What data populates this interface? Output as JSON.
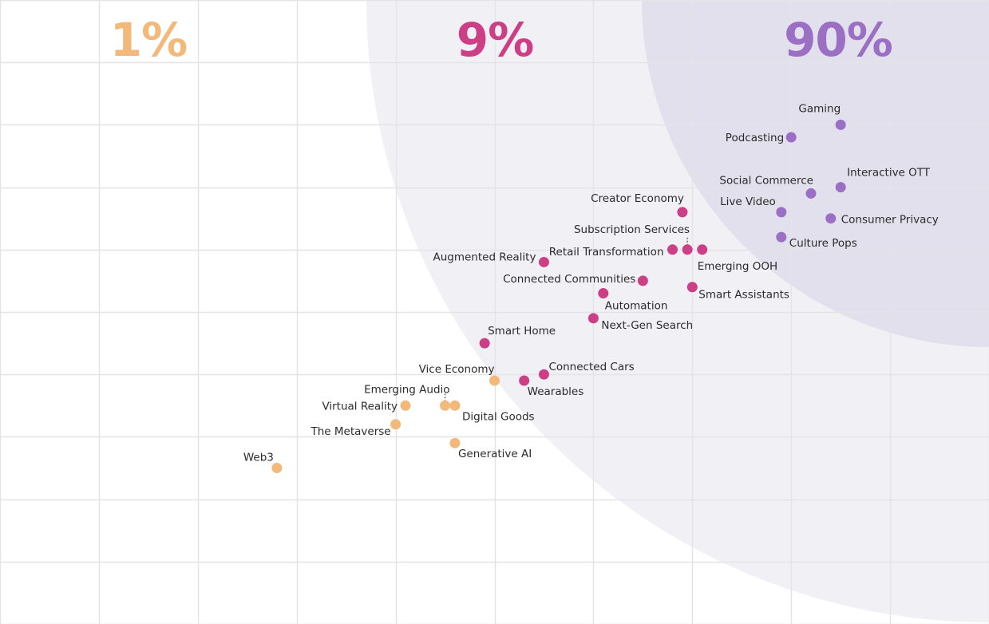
{
  "colors": {
    "tier_1": "#f2b97a",
    "tier_9": "#cc3f86",
    "tier_90": "#9b6fc4",
    "zone_outer": "#f0f0f5",
    "zone_inner": "#e2e0ec",
    "grid": "#e4e4e8"
  },
  "chart_data": {
    "type": "scatter",
    "title": "",
    "xlabel": "",
    "ylabel": "",
    "grid": true,
    "legend": "none",
    "tier_headers": [
      {
        "label": "1%",
        "tier": "1"
      },
      {
        "label": "9%",
        "tier": "9"
      },
      {
        "label": "90%",
        "tier": "90"
      }
    ],
    "series": [
      {
        "name": "1%",
        "points": [
          {
            "label": "Web3",
            "x": 2.8,
            "y": 2.5
          },
          {
            "label": "The Metaverse",
            "x": 4.0,
            "y": 3.2
          },
          {
            "label": "Virtual Reality",
            "x": 4.1,
            "y": 3.5
          },
          {
            "label": "Emerging Audio",
            "x": 4.5,
            "y": 3.5
          },
          {
            "label": "Digital Goods",
            "x": 4.6,
            "y": 3.5
          },
          {
            "label": "Generative AI",
            "x": 4.6,
            "y": 2.9
          },
          {
            "label": "Vice Economy",
            "x": 5.0,
            "y": 3.9
          }
        ]
      },
      {
        "name": "9%",
        "points": [
          {
            "label": "Smart Home",
            "x": 4.9,
            "y": 4.5
          },
          {
            "label": "Wearables",
            "x": 5.3,
            "y": 3.9
          },
          {
            "label": "Connected Cars",
            "x": 5.5,
            "y": 4.0
          },
          {
            "label": "Augmented Reality",
            "x": 5.5,
            "y": 5.8
          },
          {
            "label": "Next-Gen Search",
            "x": 6.0,
            "y": 4.9
          },
          {
            "label": "Automation",
            "x": 6.1,
            "y": 5.3
          },
          {
            "label": "Connected Communities",
            "x": 6.5,
            "y": 5.5
          },
          {
            "label": "Creator Economy",
            "x": 6.9,
            "y": 6.6
          },
          {
            "label": "Retail Transformation",
            "x": 6.8,
            "y": 6.0
          },
          {
            "label": "Subscription Services",
            "x": 6.95,
            "y": 6.0
          },
          {
            "label": "Emerging OOH",
            "x": 7.1,
            "y": 6.0
          },
          {
            "label": "Smart Assistants",
            "x": 7.0,
            "y": 5.4
          }
        ]
      },
      {
        "name": "90%",
        "points": [
          {
            "label": "Culture Pops",
            "x": 7.9,
            "y": 6.2
          },
          {
            "label": "Live Video",
            "x": 7.9,
            "y": 6.6
          },
          {
            "label": "Social Commerce",
            "x": 8.2,
            "y": 6.9
          },
          {
            "label": "Consumer Privacy",
            "x": 8.4,
            "y": 6.5
          },
          {
            "label": "Interactive OTT",
            "x": 8.5,
            "y": 7.0
          },
          {
            "label": "Podcasting",
            "x": 8.0,
            "y": 7.8
          },
          {
            "label": "Gaming",
            "x": 8.5,
            "y": 8.0
          }
        ]
      }
    ]
  }
}
